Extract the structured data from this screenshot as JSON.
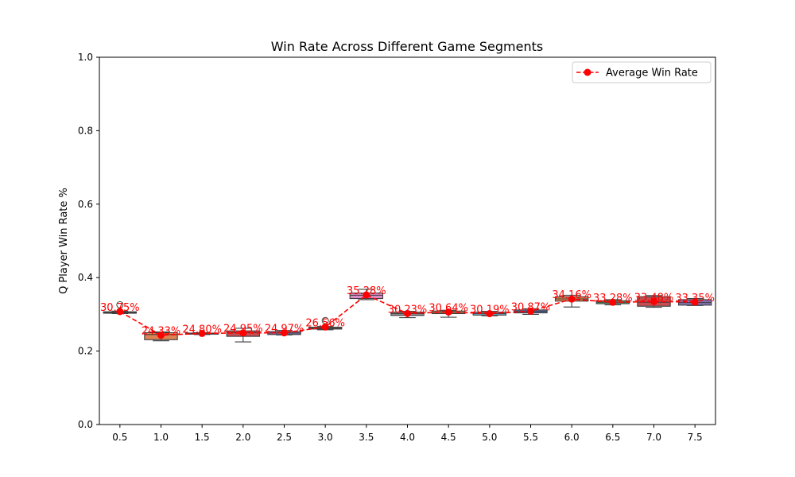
{
  "chart_data": {
    "type": "box",
    "title": "Win Rate Across Different Game Segments",
    "xlabel": "",
    "ylabel": "Q Player Win Rate %",
    "ylim": [
      0,
      1.0
    ],
    "yticks": [
      "0.0",
      "0.2",
      "0.4",
      "0.6",
      "0.8",
      "1.0"
    ],
    "categories": [
      "0.5",
      "1.0",
      "1.5",
      "2.0",
      "2.5",
      "3.0",
      "3.5",
      "4.0",
      "4.5",
      "5.0",
      "5.5",
      "6.0",
      "6.5",
      "7.0",
      "7.5"
    ],
    "box_colors": [
      "#4c72b0",
      "#dd8452",
      "#55a868",
      "#c44e52",
      "#8172b3",
      "#937860",
      "#da8bc3",
      "#8c8c8c",
      "#ccb974",
      "#64b5cd",
      "#4c72b0",
      "#dd8452",
      "#55a868",
      "#c44e52",
      "#8172b3"
    ],
    "boxes": [
      {
        "whislo": 0.302,
        "q1": 0.303,
        "med": 0.305,
        "q3": 0.307,
        "whishi": 0.309,
        "fliers": [
          0.326
        ]
      },
      {
        "whislo": 0.228,
        "q1": 0.231,
        "med": 0.245,
        "q3": 0.25,
        "whishi": 0.252,
        "fliers": []
      },
      {
        "whislo": 0.245,
        "q1": 0.246,
        "med": 0.248,
        "q3": 0.249,
        "whishi": 0.25,
        "fliers": []
      },
      {
        "whislo": 0.225,
        "q1": 0.24,
        "med": 0.25,
        "q3": 0.255,
        "whishi": 0.262,
        "fliers": []
      },
      {
        "whislo": 0.244,
        "q1": 0.245,
        "med": 0.249,
        "q3": 0.253,
        "whishi": 0.256,
        "fliers": []
      },
      {
        "whislo": 0.258,
        "q1": 0.26,
        "med": 0.262,
        "q3": 0.265,
        "whishi": 0.267,
        "fliers": [
          0.283
        ]
      },
      {
        "whislo": 0.34,
        "q1": 0.343,
        "med": 0.352,
        "q3": 0.358,
        "whishi": 0.368,
        "fliers": []
      },
      {
        "whislo": 0.291,
        "q1": 0.297,
        "med": 0.302,
        "q3": 0.306,
        "whishi": 0.308,
        "fliers": []
      },
      {
        "whislo": 0.292,
        "q1": 0.302,
        "med": 0.305,
        "q3": 0.309,
        "whishi": 0.311,
        "fliers": []
      },
      {
        "whislo": 0.296,
        "q1": 0.298,
        "med": 0.302,
        "q3": 0.306,
        "whishi": 0.308,
        "fliers": []
      },
      {
        "whislo": 0.3,
        "q1": 0.304,
        "med": 0.308,
        "q3": 0.312,
        "whishi": 0.315,
        "fliers": []
      },
      {
        "whislo": 0.32,
        "q1": 0.336,
        "med": 0.342,
        "q3": 0.348,
        "whishi": 0.352,
        "fliers": []
      },
      {
        "whislo": 0.326,
        "q1": 0.329,
        "med": 0.333,
        "q3": 0.337,
        "whishi": 0.34,
        "fliers": []
      },
      {
        "whislo": 0.319,
        "q1": 0.322,
        "med": 0.333,
        "q3": 0.348,
        "whishi": 0.351,
        "fliers": []
      },
      {
        "whislo": 0.324,
        "q1": 0.325,
        "med": 0.332,
        "q3": 0.34,
        "whishi": 0.343,
        "fliers": []
      }
    ],
    "series": [
      {
        "name": "Average Win Rate",
        "color": "#ff0000",
        "line_style": "dashed",
        "marker": "circle",
        "values": [
          0.3075,
          0.2433,
          0.248,
          0.2495,
          0.2497,
          0.2656,
          0.3528,
          0.3023,
          0.3064,
          0.3019,
          0.3087,
          0.3416,
          0.3328,
          0.3348,
          0.3335
        ],
        "labels": [
          "30.75%",
          "24.33%",
          "24.80%",
          "24.95%",
          "24.97%",
          "26.56%",
          "35.28%",
          "30.23%",
          "30.64%",
          "30.19%",
          "30.87%",
          "34.16%",
          "33.28%",
          "33.48%",
          "33.35%"
        ]
      }
    ],
    "legend": {
      "position": "top-right",
      "entries": [
        "Average Win Rate"
      ]
    },
    "grid": false
  }
}
